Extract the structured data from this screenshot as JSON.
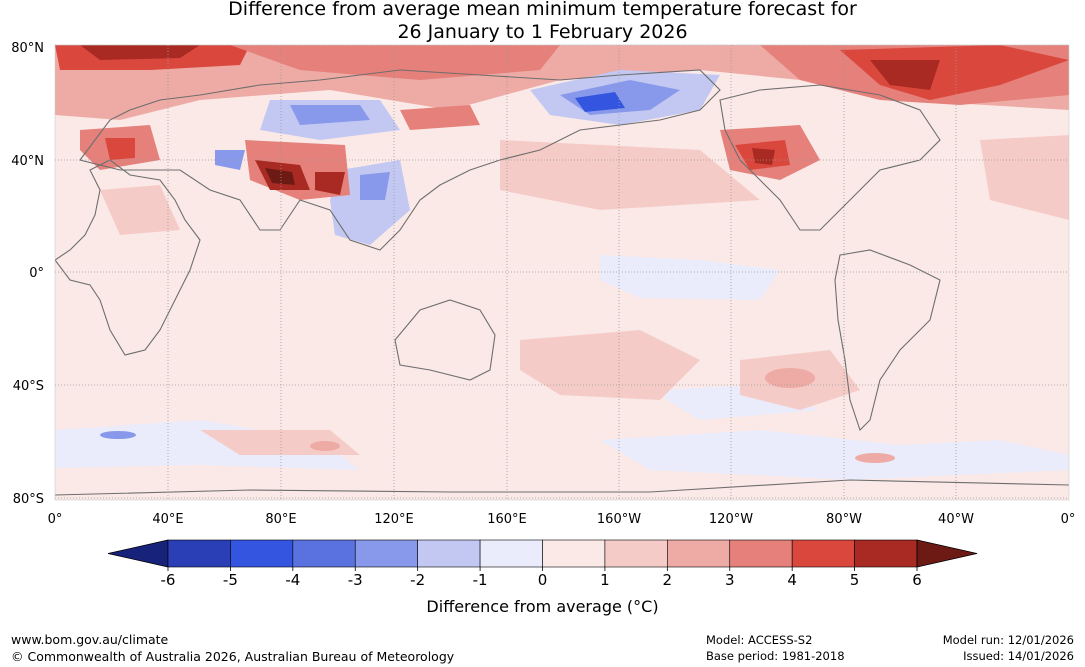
{
  "title": {
    "line1": "Difference from average mean minimum temperature forecast for",
    "line2": "26 January to 1 February 2026"
  },
  "map": {
    "lat_labels": [
      "80°N",
      "40°N",
      "0°",
      "40°S",
      "80°S"
    ],
    "lon_labels": [
      "0°",
      "40°E",
      "80°E",
      "120°E",
      "160°E",
      "160°W",
      "120°W",
      "80°W",
      "40°W",
      "0°"
    ],
    "anomaly_regions": [
      {
        "region": "arctic-north-america",
        "anomaly": 5
      },
      {
        "region": "arctic-siberia",
        "anomaly": 4
      },
      {
        "region": "western-north-america",
        "anomaly": 5
      },
      {
        "region": "central-asia-himalaya",
        "anomaly": 6
      },
      {
        "region": "eastern-siberia",
        "anomaly": -4
      },
      {
        "region": "northern-china",
        "anomaly": -2
      }
    ]
  },
  "colorbar": {
    "ticks": [
      "-6",
      "-5",
      "-4",
      "-3",
      "-2",
      "-1",
      "0",
      "1",
      "2",
      "3",
      "4",
      "5",
      "6"
    ],
    "colors": [
      "#17227a",
      "#2a3fb5",
      "#3355e0",
      "#5a72e0",
      "#8898ea",
      "#c3c8f2",
      "#eaecfb",
      "#fbe9e7",
      "#f5cbc7",
      "#eeaaa4",
      "#e5807a",
      "#d9473d",
      "#a82a22",
      "#6e1a14"
    ],
    "label": "Difference from average (°C)"
  },
  "footer": {
    "url": "www.bom.gov.au/climate",
    "copyright": "© Commonwealth of Australia 2026, Australian Bureau of Meteorology",
    "model": "Model: ACCESS-S2",
    "base_period": "Base period: 1981-2018",
    "model_run": "Model run: 12/01/2026",
    "issued": "Issued: 14/01/2026"
  }
}
